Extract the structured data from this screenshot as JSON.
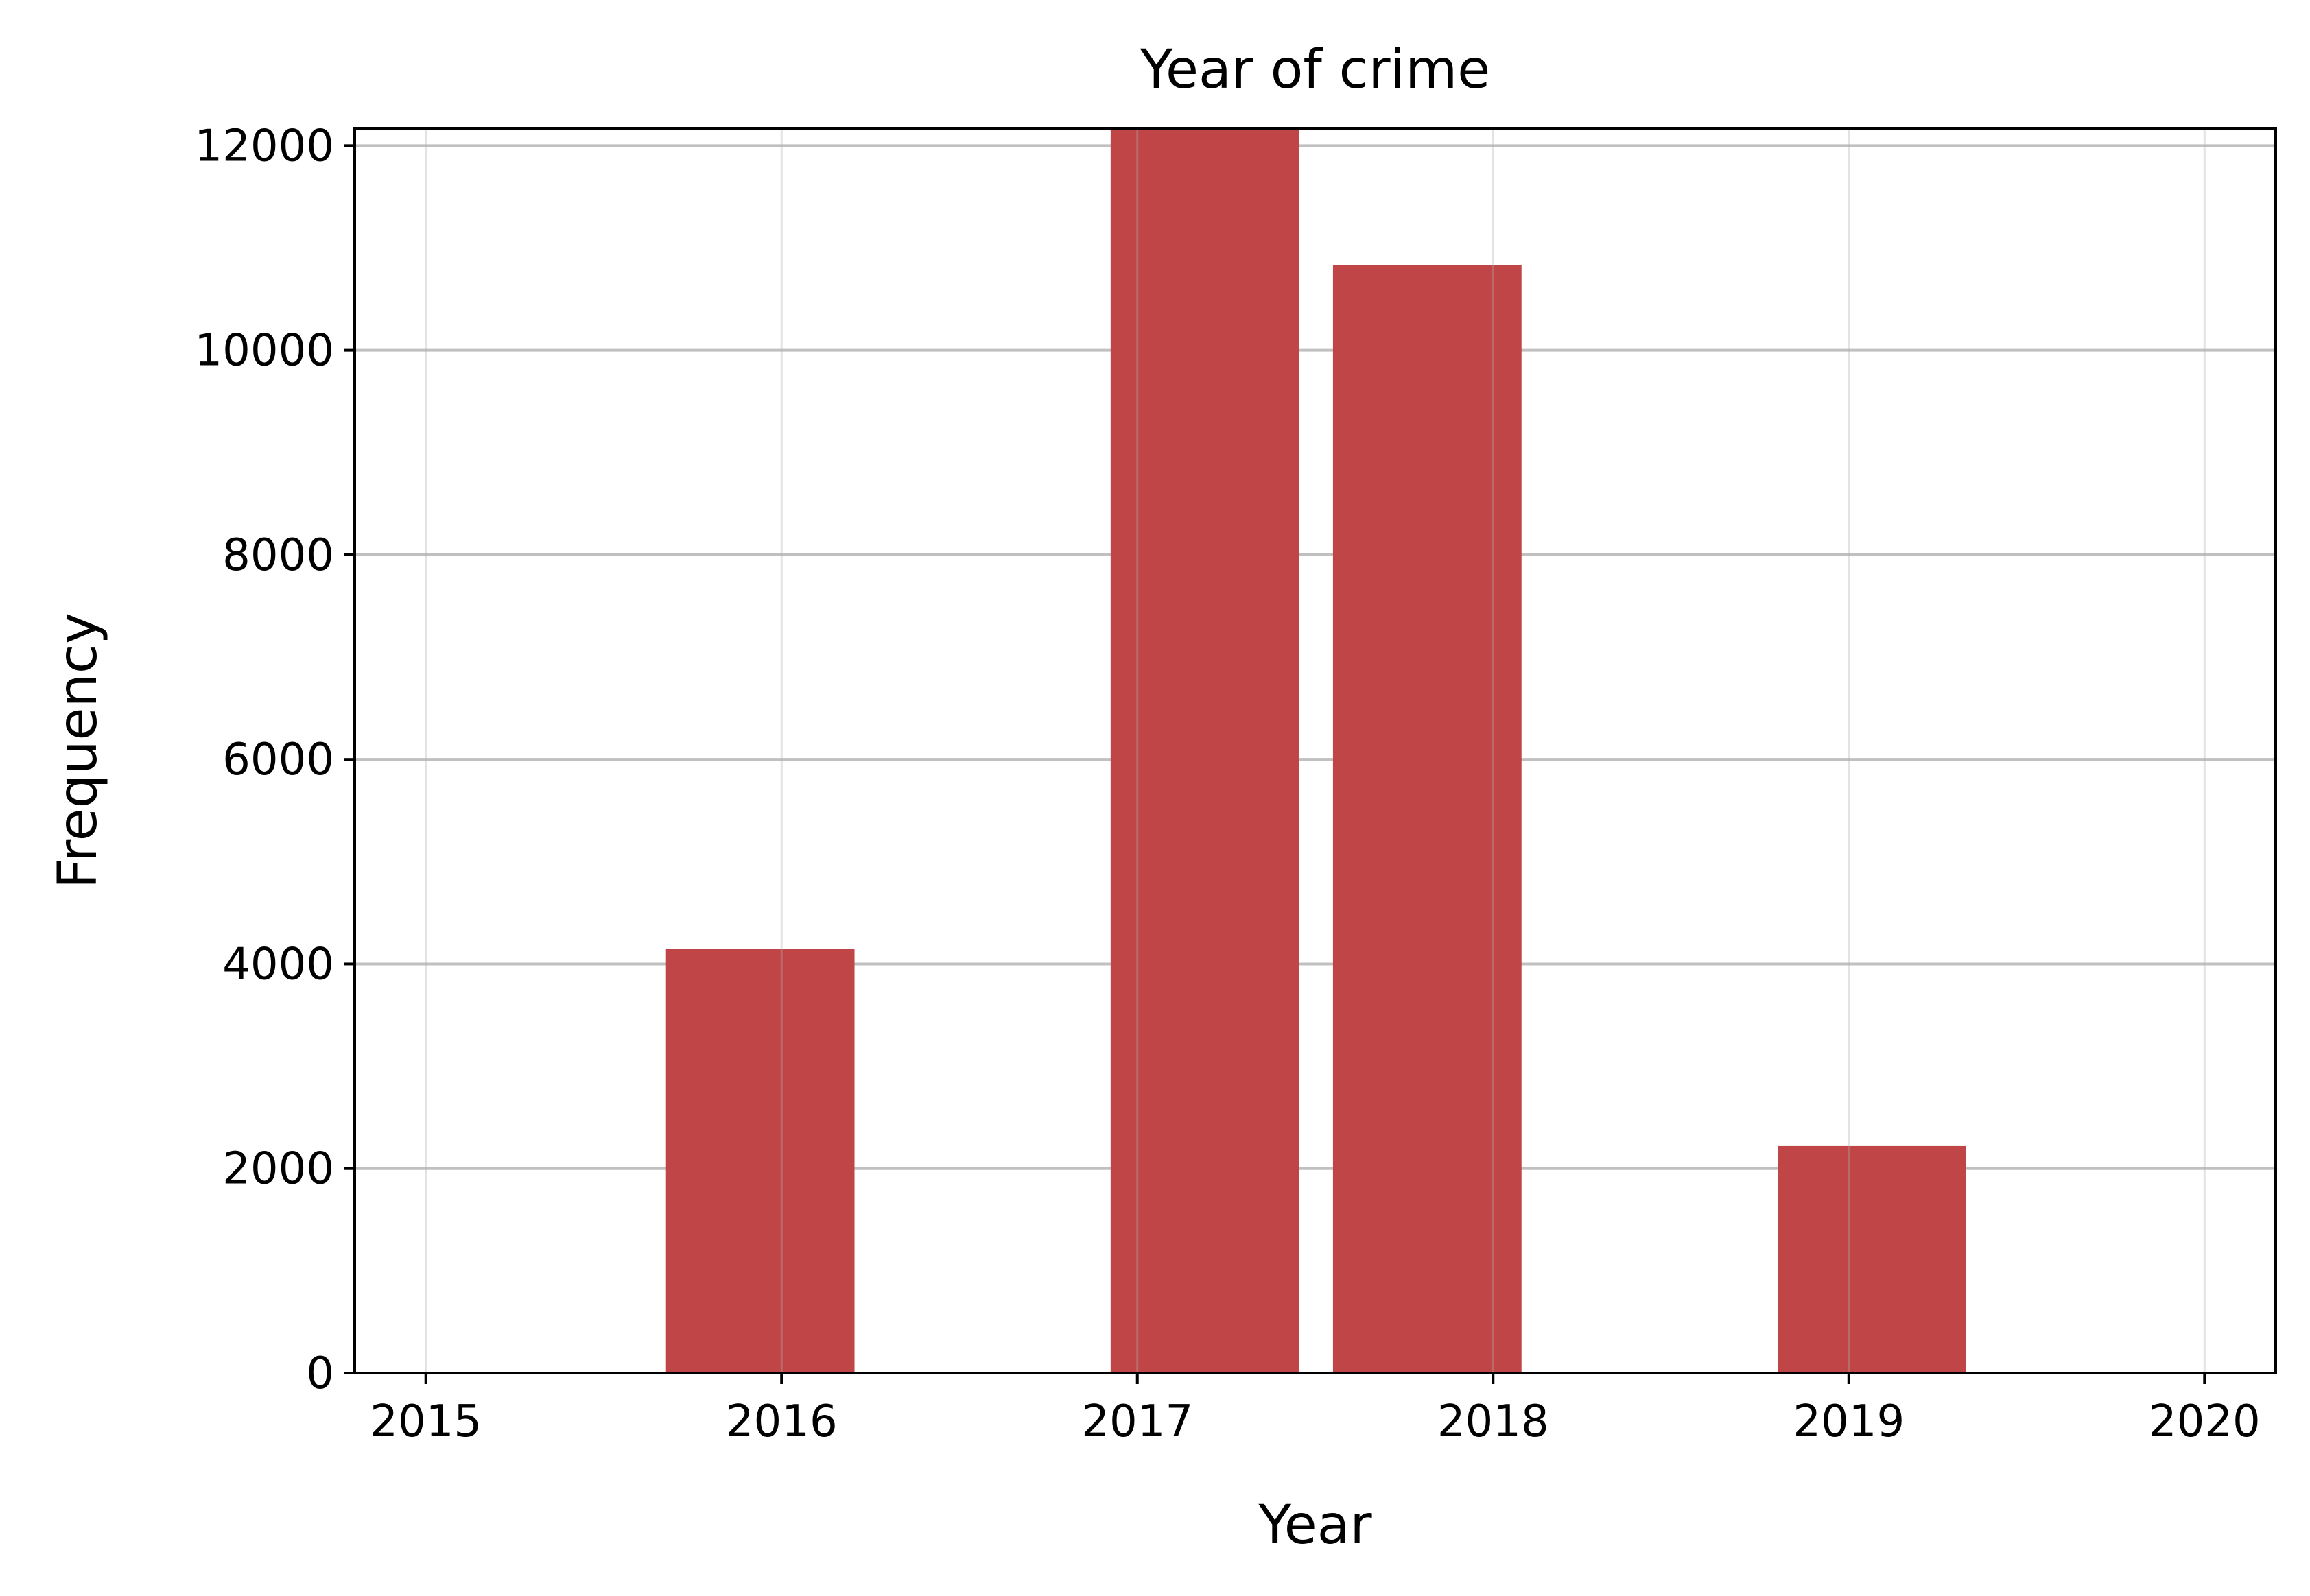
{
  "chart_data": {
    "type": "bar",
    "title": "Year of crime",
    "xlabel": "Year",
    "ylabel": "Frequency",
    "xlim": [
      2014.8,
      2020.2
    ],
    "ylim": [
      0,
      12170
    ],
    "xticks": [
      2015,
      2016,
      2017,
      2018,
      2019,
      2020
    ],
    "yticks": [
      0,
      2000,
      4000,
      6000,
      8000,
      10000,
      12000
    ],
    "bins": [
      {
        "x0": 2015.675,
        "x1": 2016.205,
        "value": 4150
      },
      {
        "x0": 2016.925,
        "x1": 2017.455,
        "value": 12170
      },
      {
        "x0": 2017.55,
        "x1": 2018.08,
        "value": 10830
      },
      {
        "x0": 2018.8,
        "x1": 2019.33,
        "value": 2220
      }
    ],
    "grid": "both",
    "colors": {
      "bar": "#c04547",
      "grid_y": "#c0c0c0",
      "grid_x": "#e8e8e8",
      "axis": "#000000"
    }
  }
}
